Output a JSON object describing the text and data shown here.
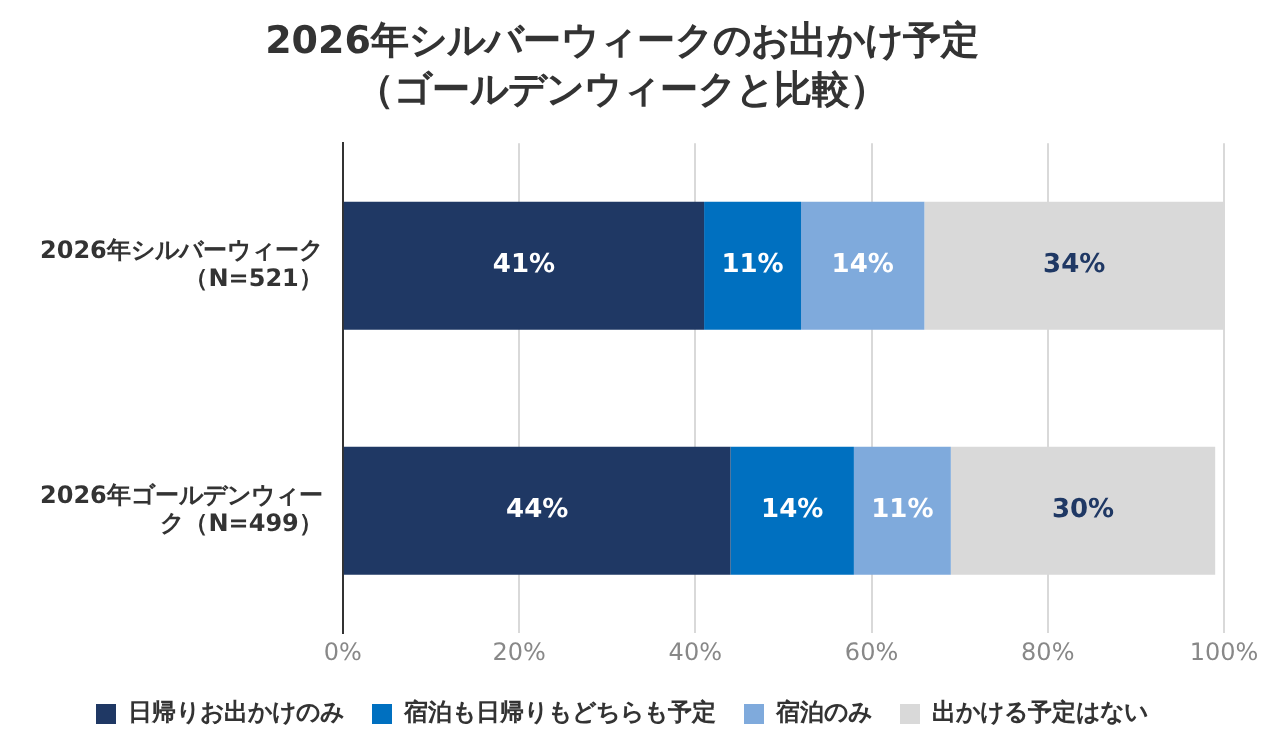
{
  "chart_data": {
    "type": "bar",
    "orientation": "horizontal",
    "stacked": true,
    "title": "2026年シルバーウィークのお出かけ予定",
    "subtitle": "（ゴールデンウィークと比較）",
    "categories": [
      "2026年シルバーウィーク（N=521）",
      "2026年ゴールデンウィーク（N=499）"
    ],
    "series": [
      {
        "name": "日帰りお出かけのみ",
        "color": "#1f3864",
        "values": [
          41,
          44
        ],
        "value_labels": [
          "41%",
          "44%"
        ]
      },
      {
        "name": "宿泊も日帰りもどちらも予定",
        "color": "#0070c0",
        "values": [
          11,
          14
        ],
        "value_labels": [
          "11%",
          "14%"
        ]
      },
      {
        "name": "宿泊のみ",
        "color": "#7faadc",
        "values": [
          14,
          11
        ],
        "value_labels": [
          "14%",
          "11%"
        ]
      },
      {
        "name": "出かける予定はない",
        "color": "#d9d9d9",
        "values": [
          34,
          30
        ],
        "value_labels": [
          "34%",
          "30%"
        ]
      }
    ],
    "xlim": [
      0,
      100
    ],
    "xticks": [
      {
        "value": 0,
        "label": "0%"
      },
      {
        "value": 20,
        "label": "20%"
      },
      {
        "value": 40,
        "label": "40%"
      },
      {
        "value": 60,
        "label": "60%"
      },
      {
        "value": 80,
        "label": "80%"
      },
      {
        "value": 100,
        "label": "100%"
      }
    ],
    "grid": "x",
    "legend": "bottom"
  }
}
